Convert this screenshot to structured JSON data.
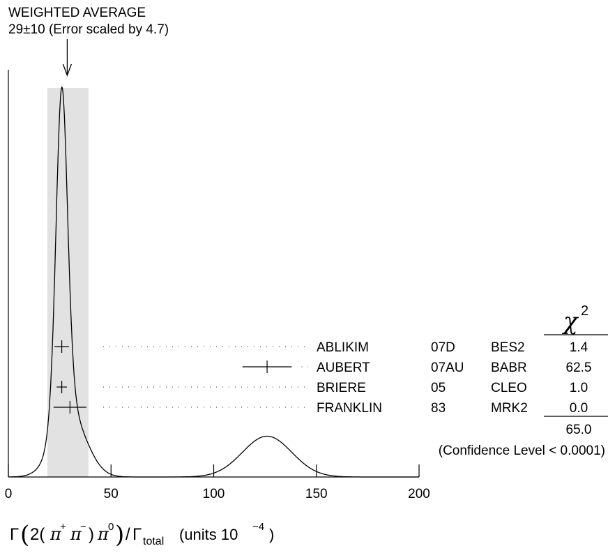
{
  "chart_data": {
    "type": "ideogram",
    "title_line1": "WEIGHTED AVERAGE",
    "title_line2": "29±10 (Error scaled by 4.7)",
    "weighted_average": {
      "value": 29,
      "error": 10,
      "scale_factor": 4.7
    },
    "band": [
      19,
      39
    ],
    "xlim": [
      0,
      200
    ],
    "x_ticks": [
      0,
      50,
      100,
      150,
      200
    ],
    "x_tick_labels": [
      "0",
      "50",
      "100",
      "150",
      "200"
    ],
    "xlabel": {
      "gamma": "Γ",
      "open": "(",
      "two": "2(",
      "pi": "π",
      "plus": "+",
      "minus": "−",
      "mid": ")",
      "zero": "0",
      "close": ")",
      "slash": "/",
      "sub": "total",
      "units": "(units 10",
      "exp": "−4",
      "units_close": ")"
    },
    "chi2_header": {
      "symbol": "χ",
      "sup": "2"
    },
    "measurements": [
      {
        "author": "ABLIKIM",
        "year": "07D",
        "experiment": "BES2",
        "chi2": "1.4",
        "value": 26,
        "error": 3.5
      },
      {
        "author": "AUBERT",
        "year": "07AU",
        "experiment": "BABR",
        "chi2": "62.5",
        "value": 126,
        "error": 12
      },
      {
        "author": "BRIERE",
        "year": "05",
        "experiment": "CLEO",
        "chi2": "1.0",
        "value": 26,
        "error": 2.5
      },
      {
        "author": "FRANKLIN",
        "year": "83",
        "experiment": "MRK2",
        "chi2": "0.0",
        "value": 30,
        "error": 8
      }
    ],
    "chi2_total": "65.0",
    "confidence_level": "(Confidence Level < 0.0001)"
  }
}
